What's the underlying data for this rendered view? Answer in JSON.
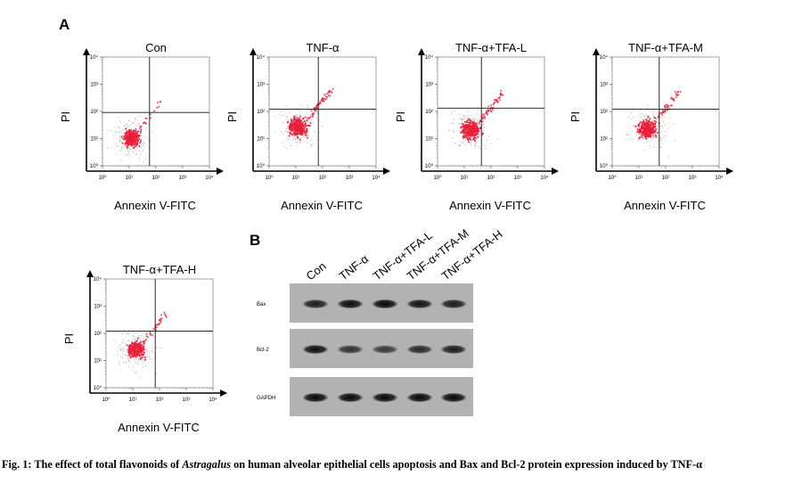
{
  "panel_labels": {
    "a": "A",
    "b": "B"
  },
  "flow": {
    "x_axis_label": "Annexin V-FITC",
    "y_axis_label": "PI",
    "tick_labels": [
      "10⁰",
      "10¹",
      "10²",
      "10³",
      "10⁴"
    ],
    "panels": [
      {
        "title": "Con",
        "point_color": "#e8203a"
      },
      {
        "title": "TNF-α",
        "point_color": "#e8203a"
      },
      {
        "title": "TNF-α+TFA-L",
        "point_color": "#e8203a"
      },
      {
        "title": "TNF-α+TFA-M",
        "point_color": "#e8203a"
      },
      {
        "title": "TNF-α+TFA-H",
        "point_color": "#e8203a"
      }
    ]
  },
  "western": {
    "lane_labels": [
      "Con",
      "TNF-α",
      "TNF-α+TFA-L",
      "TNF-α+TFA-M",
      "TNF-α+TFA-H"
    ],
    "rows": [
      {
        "label": "Bax",
        "band_intensity": [
          0.78,
          0.92,
          0.95,
          0.88,
          0.8
        ]
      },
      {
        "label": "Bcl-2",
        "band_intensity": [
          0.9,
          0.6,
          0.52,
          0.68,
          0.78
        ]
      },
      {
        "label": "GAPDH",
        "band_intensity": [
          0.95,
          0.95,
          0.95,
          0.95,
          0.95
        ]
      }
    ]
  },
  "caption": {
    "part1": "Fig. 1: The effect of total flavonoids of ",
    "italic": "Astragalus",
    "part2": " on human alveolar epithelial cells apoptosis and Bax and Bcl-2 protein expression induced by TNF-α"
  }
}
